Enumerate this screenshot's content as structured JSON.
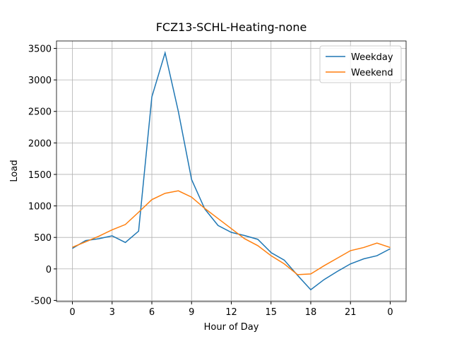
{
  "chart_data": {
    "type": "line",
    "title": "FCZ13-SCHL-Heating-none",
    "x_label": "Hour of Day",
    "y_label": "Load",
    "x": [
      0,
      1,
      2,
      3,
      4,
      5,
      6,
      7,
      8,
      9,
      10,
      11,
      12,
      13,
      14,
      15,
      16,
      17,
      18,
      19,
      20,
      21,
      22,
      23,
      24
    ],
    "series": [
      {
        "name": "Weekday",
        "color": "#1f77b4",
        "values": [
          325,
          450,
          480,
          525,
          420,
          600,
          2730,
          3430,
          2500,
          1420,
          950,
          690,
          580,
          530,
          470,
          260,
          140,
          -100,
          -330,
          -170,
          -40,
          80,
          160,
          210,
          320
        ]
      },
      {
        "name": "Weekend",
        "color": "#ff7f0e",
        "values": [
          345,
          430,
          520,
          620,
          705,
          900,
          1100,
          1200,
          1240,
          1140,
          960,
          800,
          640,
          480,
          370,
          210,
          80,
          -90,
          -80,
          50,
          170,
          290,
          340,
          410,
          340
        ]
      }
    ],
    "xlim": [
      -1.2,
      25.2
    ],
    "xticks": [
      0,
      3,
      6,
      9,
      12,
      15,
      18,
      21,
      {
        "value": 24,
        "label": "0"
      }
    ],
    "ylim": [
      -518,
      3618
    ],
    "yticks": [
      -500,
      0,
      500,
      1000,
      1500,
      2000,
      2500,
      3000,
      3500
    ],
    "grid": true,
    "legend": "upper right"
  }
}
